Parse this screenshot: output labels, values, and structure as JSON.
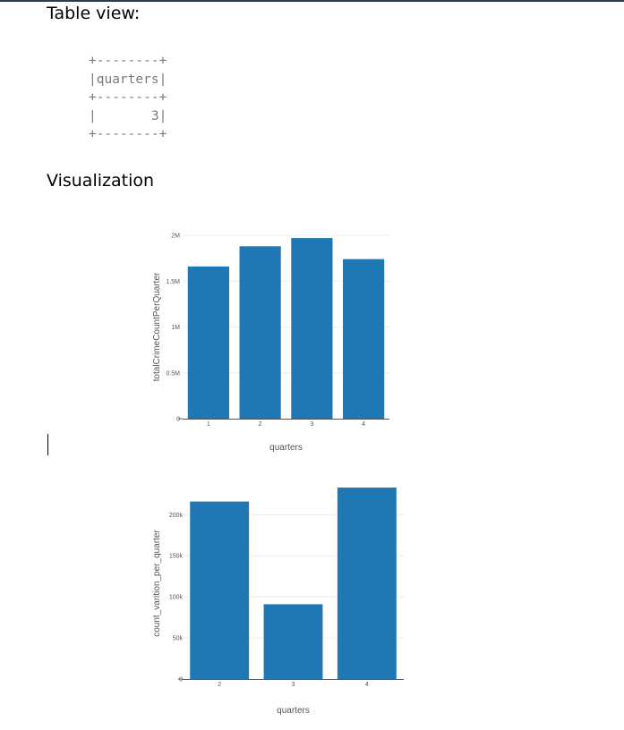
{
  "headings": {
    "table_view": "Table view:",
    "visualization": "Visualization"
  },
  "table": {
    "border": "+--------+",
    "header": "|quarters|",
    "row": "|       3|"
  },
  "colors": {
    "bar": "#1f77b4",
    "top_rule": "#2b3a55"
  },
  "chart_data": [
    {
      "type": "bar",
      "categories": [
        "1",
        "2",
        "3",
        "4"
      ],
      "values": [
        1660000,
        1880000,
        1970000,
        1740000
      ],
      "ylim": [
        0,
        2000000
      ],
      "yticks": [
        {
          "value": 0,
          "label": "0"
        },
        {
          "value": 500000,
          "label": "0.5M"
        },
        {
          "value": 1000000,
          "label": "1M"
        },
        {
          "value": 1500000,
          "label": "1.5M"
        },
        {
          "value": 2000000,
          "label": "2M"
        }
      ],
      "xlabel": "quarters",
      "ylabel": "totalCrimeCountPerQuarter",
      "grid": true
    },
    {
      "type": "bar",
      "categories": [
        "2",
        "3",
        "4"
      ],
      "values": [
        216000,
        91000,
        233000
      ],
      "ylim": [
        0,
        233000
      ],
      "yticks": [
        {
          "value": 0,
          "label": "0"
        },
        {
          "value": 50000,
          "label": "50k"
        },
        {
          "value": 100000,
          "label": "100k"
        },
        {
          "value": 150000,
          "label": "150k"
        },
        {
          "value": 200000,
          "label": "200k"
        }
      ],
      "xlabel": "quarters",
      "ylabel": "count_varition_per_quarter",
      "grid": true
    }
  ]
}
